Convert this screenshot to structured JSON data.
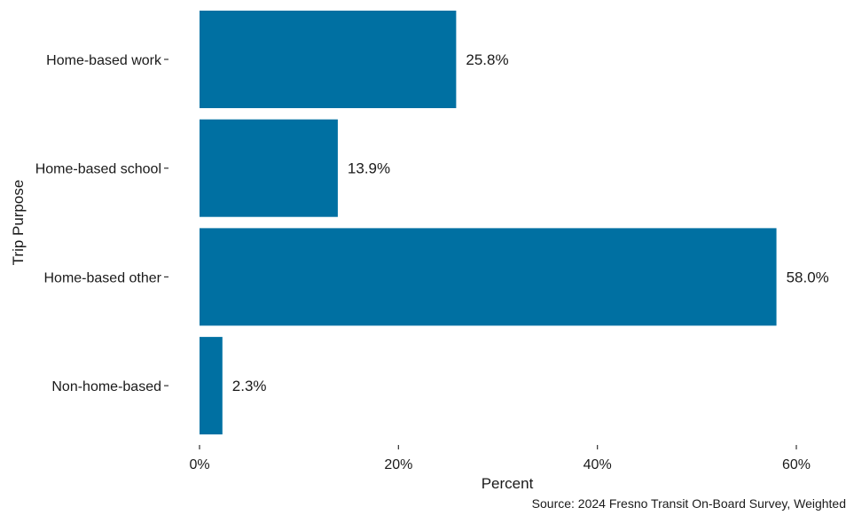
{
  "chart_data": {
    "type": "bar",
    "orientation": "horizontal",
    "categories": [
      "Home-based work",
      "Home-based school",
      "Home-based other",
      "Non-home-based"
    ],
    "values": [
      25.8,
      13.9,
      58.0,
      2.3
    ],
    "data_labels": [
      "25.8%",
      "13.9%",
      "58.0%",
      "2.3%"
    ],
    "title": "",
    "xlabel": "Percent",
    "ylabel": "Trip Purpose",
    "xlim": [
      0,
      60
    ],
    "x_ticks": [
      0,
      20,
      40,
      60
    ],
    "x_tick_labels": [
      "0%",
      "20%",
      "40%",
      "60%"
    ],
    "caption": "Source: 2024 Fresno Transit On-Board Survey, Weighted",
    "grid": false,
    "legend": "none",
    "bar_color": "#0070A2"
  }
}
